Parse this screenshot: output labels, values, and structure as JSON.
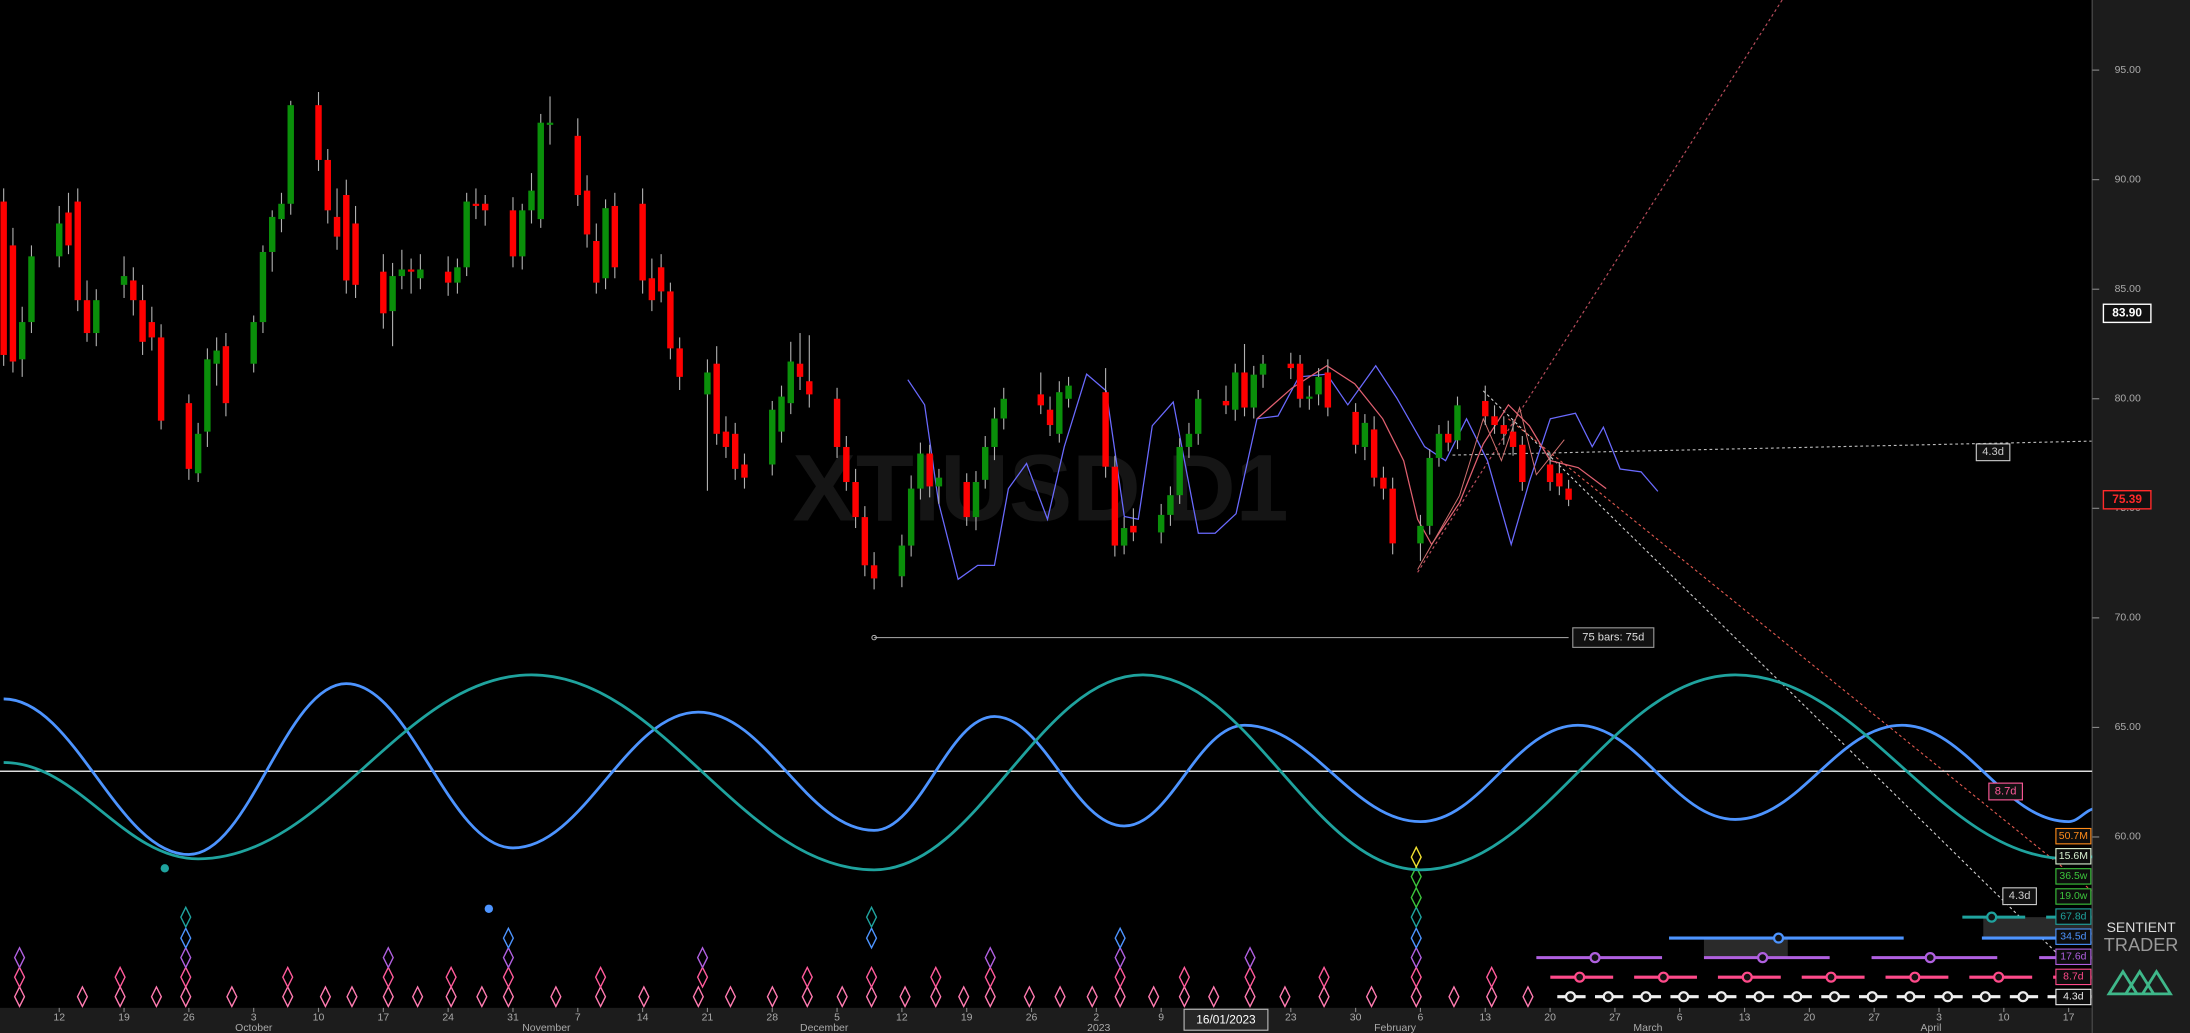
{
  "chart_data": {
    "type": "candlestick",
    "watermark": "XTIUSD D1",
    "x": [
      "2022-09-06",
      "2022-09-07",
      "2022-09-08",
      "2022-09-09",
      "2022-09-12",
      "2022-09-13",
      "2022-09-14",
      "2022-09-15",
      "2022-09-16",
      "2022-09-19",
      "2022-09-20",
      "2022-09-21",
      "2022-09-22",
      "2022-09-23",
      "2022-09-26",
      "2022-09-27",
      "2022-09-28",
      "2022-09-29",
      "2022-09-30",
      "2022-10-03",
      "2022-10-04",
      "2022-10-05",
      "2022-10-06",
      "2022-10-07",
      "2022-10-10",
      "2022-10-11",
      "2022-10-12",
      "2022-10-13",
      "2022-10-14",
      "2022-10-17",
      "2022-10-18",
      "2022-10-19",
      "2022-10-20",
      "2022-10-21",
      "2022-10-24",
      "2022-10-25",
      "2022-10-26",
      "2022-10-27",
      "2022-10-28",
      "2022-10-31",
      "2022-11-01",
      "2022-11-02",
      "2022-11-03",
      "2022-11-04",
      "2022-11-07",
      "2022-11-08",
      "2022-11-09",
      "2022-11-10",
      "2022-11-11",
      "2022-11-14",
      "2022-11-15",
      "2022-11-16",
      "2022-11-17",
      "2022-11-18",
      "2022-11-21",
      "2022-11-22",
      "2022-11-23",
      "2022-11-24",
      "2022-11-25",
      "2022-11-28",
      "2022-11-29",
      "2022-11-30",
      "2022-12-01",
      "2022-12-02",
      "2022-12-05",
      "2022-12-06",
      "2022-12-07",
      "2022-12-08",
      "2022-12-09",
      "2022-12-12",
      "2022-12-13",
      "2022-12-14",
      "2022-12-15",
      "2022-12-16",
      "2022-12-19",
      "2022-12-20",
      "2022-12-21",
      "2022-12-22",
      "2022-12-23",
      "2022-12-27",
      "2022-12-28",
      "2022-12-29",
      "2022-12-30",
      "2023-01-03",
      "2023-01-04",
      "2023-01-05",
      "2023-01-06",
      "2023-01-09",
      "2023-01-10",
      "2023-01-11",
      "2023-01-12",
      "2023-01-13",
      "2023-01-16",
      "2023-01-17",
      "2023-01-18",
      "2023-01-19",
      "2023-01-20",
      "2023-01-23",
      "2023-01-24",
      "2023-01-25",
      "2023-01-26",
      "2023-01-27",
      "2023-01-30",
      "2023-01-31",
      "2023-02-01",
      "2023-02-02",
      "2023-02-03",
      "2023-02-06",
      "2023-02-07",
      "2023-02-08",
      "2023-02-09",
      "2023-02-10",
      "2023-02-13",
      "2023-02-14",
      "2023-02-15",
      "2023-02-16",
      "2023-02-17",
      "2023-02-20",
      "2023-02-21",
      "2023-02-22"
    ],
    "open": [
      89.0,
      87.0,
      81.8,
      83.5,
      86.5,
      88.5,
      89.0,
      84.5,
      83.0,
      85.2,
      85.4,
      84.5,
      83.5,
      82.8,
      79.8,
      76.6,
      78.5,
      81.6,
      82.4,
      81.6,
      83.5,
      86.7,
      88.2,
      88.9,
      93.4,
      90.9,
      88.3,
      89.3,
      88.0,
      85.8,
      84.0,
      85.6,
      85.9,
      85.5,
      85.8,
      85.3,
      86.0,
      88.9,
      88.9,
      88.6,
      86.5,
      88.6,
      88.2,
      92.5,
      92.0,
      89.5,
      87.2,
      85.5,
      88.8,
      88.9,
      85.5,
      86.0,
      84.9,
      82.3,
      80.2,
      81.6,
      78.5,
      78.4,
      77.0,
      77.0,
      78.5,
      79.8,
      81.6,
      80.8,
      80.0,
      77.8,
      76.2,
      74.6,
      72.4,
      71.9,
      73.3,
      75.9,
      77.5,
      76.0,
      76.2,
      74.6,
      76.3,
      77.8,
      79.1,
      80.2,
      79.5,
      78.4,
      80.0,
      80.3,
      76.9,
      73.3,
      74.2,
      73.9,
      74.7,
      75.6,
      77.8,
      78.4,
      79.9,
      79.5,
      81.2,
      79.6,
      81.1,
      81.6,
      81.6,
      80.0,
      80.2,
      81.2,
      79.4,
      77.8,
      78.6,
      76.4,
      75.9,
      73.4,
      74.2,
      77.3,
      78.4,
      78.1,
      79.9,
      79.2,
      78.8,
      78.5,
      77.9,
      77.0,
      76.6,
      75.9
    ],
    "high": [
      89.6,
      87.8,
      84.2,
      87.0,
      88.8,
      89.4,
      89.6,
      85.4,
      85.0,
      86.5,
      86.0,
      85.2,
      84.2,
      83.4,
      80.2,
      78.9,
      82.3,
      82.8,
      83.0,
      83.8,
      87.0,
      88.6,
      89.4,
      93.6,
      94.0,
      91.4,
      89.6,
      90.0,
      88.8,
      86.6,
      86.2,
      86.8,
      86.4,
      86.6,
      86.5,
      86.4,
      89.4,
      89.6,
      89.3,
      89.2,
      88.9,
      90.3,
      93.0,
      93.8,
      92.8,
      90.2,
      88.0,
      89.1,
      89.4,
      89.6,
      86.4,
      86.6,
      85.3,
      82.8,
      81.8,
      82.4,
      79.2,
      78.9,
      77.5,
      79.9,
      80.6,
      82.6,
      83.0,
      82.9,
      80.5,
      78.3,
      76.8,
      75.1,
      73.0,
      73.8,
      76.5,
      78.0,
      77.9,
      76.8,
      76.6,
      76.7,
      78.3,
      79.6,
      80.5,
      81.2,
      80.1,
      80.8,
      81.0,
      81.4,
      77.4,
      74.6,
      75.0,
      75.2,
      76.0,
      78.2,
      78.9,
      80.4,
      80.6,
      81.6,
      82.5,
      81.5,
      82.0,
      82.1,
      82.0,
      80.6,
      81.4,
      81.8,
      79.8,
      79.3,
      79.2,
      76.9,
      76.4,
      74.7,
      77.7,
      78.8,
      79.0,
      80.1,
      80.6,
      79.7,
      79.2,
      79.0,
      78.3,
      77.5,
      77.1,
      76.3
    ],
    "low": [
      81.5,
      81.2,
      81.0,
      83.0,
      86.0,
      86.6,
      84.0,
      82.6,
      82.4,
      84.6,
      83.8,
      82.0,
      82.2,
      78.6,
      76.3,
      76.2,
      77.8,
      80.6,
      79.2,
      81.2,
      83.0,
      85.8,
      87.6,
      88.4,
      90.4,
      88.0,
      86.8,
      84.8,
      84.6,
      83.2,
      82.4,
      85.0,
      84.8,
      85.0,
      84.7,
      84.8,
      85.6,
      88.2,
      87.9,
      86.0,
      85.9,
      88.0,
      87.8,
      91.6,
      88.8,
      86.9,
      84.8,
      85.0,
      85.5,
      84.8,
      84.0,
      84.4,
      81.8,
      80.4,
      75.8,
      77.9,
      77.3,
      76.3,
      75.9,
      76.5,
      78.0,
      79.3,
      80.4,
      79.6,
      77.3,
      75.8,
      74.1,
      71.9,
      71.3,
      71.4,
      72.8,
      75.4,
      75.5,
      75.2,
      74.2,
      74.0,
      75.9,
      77.2,
      78.6,
      79.3,
      78.3,
      78.0,
      79.6,
      76.4,
      72.8,
      72.9,
      73.5,
      73.4,
      74.2,
      75.2,
      77.3,
      77.9,
      79.3,
      79.0,
      79.2,
      79.1,
      80.5,
      80.9,
      79.6,
      79.5,
      79.7,
      79.2,
      77.5,
      77.2,
      76.0,
      75.4,
      72.9,
      72.6,
      73.8,
      76.9,
      77.6,
      77.7,
      78.8,
      78.4,
      77.9,
      77.4,
      75.8,
      75.8,
      75.6,
      75.1
    ],
    "close": [
      82.0,
      81.7,
      83.5,
      86.5,
      88.0,
      87.0,
      84.5,
      83.0,
      84.5,
      85.6,
      84.5,
      82.6,
      82.8,
      79.0,
      76.8,
      78.4,
      81.8,
      82.2,
      79.8,
      83.5,
      86.7,
      88.3,
      88.9,
      93.4,
      90.9,
      88.6,
      87.4,
      85.4,
      85.2,
      83.9,
      85.6,
      85.9,
      85.8,
      85.9,
      85.3,
      86.0,
      89.0,
      88.8,
      88.6,
      86.5,
      88.6,
      89.5,
      92.6,
      92.6,
      89.3,
      87.5,
      85.3,
      88.7,
      86.0,
      85.4,
      84.5,
      84.9,
      82.3,
      81.0,
      81.2,
      78.4,
      77.8,
      76.8,
      76.4,
      79.5,
      80.1,
      81.7,
      81.0,
      80.2,
      77.8,
      76.2,
      74.6,
      72.4,
      71.8,
      73.3,
      75.9,
      77.5,
      76.0,
      76.4,
      74.6,
      76.2,
      77.8,
      79.1,
      80.0,
      79.7,
      78.8,
      80.3,
      80.6,
      76.9,
      73.3,
      74.1,
      73.9,
      74.7,
      75.6,
      77.8,
      78.4,
      80.0,
      79.7,
      81.2,
      79.6,
      81.1,
      81.6,
      81.4,
      80.0,
      80.1,
      81.0,
      79.6,
      77.9,
      78.9,
      76.4,
      75.9,
      73.4,
      74.2,
      77.3,
      78.4,
      78.0,
      79.7,
      79.2,
      78.8,
      78.4,
      77.8,
      76.2,
      76.2,
      76.0,
      75.39
    ],
    "up_color": "#0a8f0a",
    "down_color": "#ff0000",
    "xlim": [
      "2022-09-05",
      "2023-04-20"
    ],
    "xticks": [
      {
        "value": "2022-09-12",
        "label": "12"
      },
      {
        "value": "2022-09-19",
        "label": "19"
      },
      {
        "value": "2022-09-26",
        "label": "26"
      },
      {
        "value": "2022-10-03",
        "label": "3"
      },
      {
        "value": "2022-10-10",
        "label": "10"
      },
      {
        "value": "2022-10-17",
        "label": "17"
      },
      {
        "value": "2022-10-24",
        "label": "24"
      },
      {
        "value": "2022-10-31",
        "label": "31"
      },
      {
        "value": "2022-11-07",
        "label": "7"
      },
      {
        "value": "2022-11-14",
        "label": "14"
      },
      {
        "value": "2022-11-21",
        "label": "21"
      },
      {
        "value": "2022-11-28",
        "label": "28"
      },
      {
        "value": "2022-12-05",
        "label": "5"
      },
      {
        "value": "2022-12-12",
        "label": "12"
      },
      {
        "value": "2022-12-19",
        "label": "19"
      },
      {
        "value": "2022-12-26",
        "label": "26"
      },
      {
        "value": "2023-01-02",
        "label": "2"
      },
      {
        "value": "2023-01-09",
        "label": "9"
      },
      {
        "value": "2023-01-23",
        "label": "23"
      },
      {
        "value": "2023-01-30",
        "label": "30"
      },
      {
        "value": "2023-02-06",
        "label": "6"
      },
      {
        "value": "2023-02-13",
        "label": "13"
      },
      {
        "value": "2023-02-20",
        "label": "20"
      },
      {
        "value": "2023-02-27",
        "label": "27"
      },
      {
        "value": "2023-03-06",
        "label": "6"
      },
      {
        "value": "2023-03-13",
        "label": "13"
      },
      {
        "value": "2023-03-20",
        "label": "20"
      },
      {
        "value": "2023-03-27",
        "label": "27"
      },
      {
        "value": "2023-04-03",
        "label": "3"
      },
      {
        "value": "2023-04-10",
        "label": "10"
      },
      {
        "value": "2023-04-17",
        "label": "17"
      }
    ],
    "month_ticks": [
      {
        "value": "2022-10-01",
        "label": "October"
      },
      {
        "value": "2022-11-01",
        "label": "November"
      },
      {
        "value": "2022-12-01",
        "label": "December"
      },
      {
        "value": "2023-01-01",
        "label": "2023"
      },
      {
        "value": "2023-02-01",
        "label": "February"
      },
      {
        "value": "2023-03-01",
        "label": "March"
      },
      {
        "value": "2023-04-01",
        "label": "April"
      }
    ],
    "cursor_date": {
      "value": "2023-01-16",
      "label": "16/01/2023"
    },
    "ylim": [
      52.2,
      98.2
    ],
    "yticks": [
      {
        "value": 95,
        "label": "95.00"
      },
      {
        "value": 90,
        "label": "90.00"
      },
      {
        "value": 85,
        "label": "85.00"
      },
      {
        "value": 80,
        "label": "80.00"
      },
      {
        "value": 75,
        "label": "75.00"
      },
      {
        "value": 70,
        "label": "70.00"
      },
      {
        "value": 65,
        "label": "65.00"
      },
      {
        "value": 60,
        "label": "60.00"
      }
    ],
    "price_markers": [
      {
        "value": 83.9,
        "label": "83.90",
        "color": "#ffffff"
      },
      {
        "value": 75.39,
        "label": "75.39",
        "color": "#ff2a2a"
      }
    ],
    "hline": 63,
    "waves": [
      {
        "color": "#4d94ff",
        "x": [
          "2022-09-06",
          "2022-09-26",
          "2022-10-13",
          "2022-10-31",
          "2022-11-20",
          "2022-12-09",
          "2022-12-22",
          "2023-01-05",
          "2023-01-18",
          "2023-02-06",
          "2023-02-23",
          "2023-03-12",
          "2023-03-30",
          "2023-04-17",
          "2023-04-20"
        ],
        "values": [
          66.3,
          59.2,
          67.0,
          59.5,
          65.7,
          60.3,
          65.5,
          60.5,
          65.1,
          60.7,
          65.1,
          60.8,
          65.1,
          60.7,
          61.3
        ]
      },
      {
        "color": "#1fa39e",
        "x": [
          "2022-09-06",
          "2022-09-27",
          "2022-11-02",
          "2022-12-09",
          "2023-01-07",
          "2023-02-06",
          "2023-03-12",
          "2023-04-17",
          "2023-04-20"
        ],
        "values": [
          63.4,
          59.0,
          67.4,
          58.5,
          67.4,
          58.5,
          67.4,
          59.0,
          59.1
        ]
      }
    ],
    "bars_annotation": {
      "label": "75 bars: 75d",
      "x": [
        "2022-12-09",
        "2023-02-22"
      ],
      "value": 69.1
    },
    "annotations": [
      {
        "label": "4.3d",
        "color": "#cccccc"
      },
      {
        "label": "8.7d",
        "color": "#ff5a9a"
      },
      {
        "label": "4.3d",
        "color": "#cccccc"
      }
    ],
    "cycle_legend": [
      {
        "label": "50.7M",
        "color": "#ff8c1a"
      },
      {
        "label": "15.6M",
        "color": "#d8f0d0"
      },
      {
        "label": "36.5w",
        "color": "#3cc43c"
      },
      {
        "label": "19.0w",
        "color": "#3cc43c"
      },
      {
        "label": "67.8d",
        "color": "#1fa39e"
      },
      {
        "label": "34.5d",
        "color": "#4d94ff"
      },
      {
        "label": "17.6d",
        "color": "#b060e0"
      },
      {
        "label": "8.7d",
        "color": "#ff4a8a"
      },
      {
        "label": "4.3d",
        "color": "#eeeeee"
      }
    ],
    "logo": [
      "SENTIENT",
      "TRADER"
    ]
  }
}
